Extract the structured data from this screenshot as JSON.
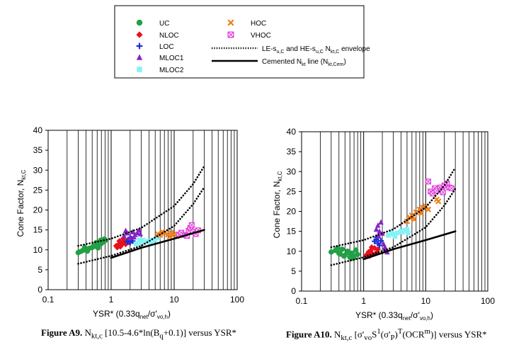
{
  "legend": {
    "items": [
      {
        "key": "UC",
        "label": "UC",
        "color": "#22a045",
        "marker": "circle"
      },
      {
        "key": "NLOC",
        "label": "NLOC",
        "color": "#e8101c",
        "marker": "diamond"
      },
      {
        "key": "LOC",
        "label": "LOC",
        "color": "#1c2fd8",
        "marker": "plus"
      },
      {
        "key": "MLOC1",
        "label": "MLOC1",
        "color": "#8a22c4",
        "marker": "triangle"
      },
      {
        "key": "MLOC2",
        "label": "MLOC2",
        "color": "#86f2f6",
        "marker": "square"
      },
      {
        "key": "HOC",
        "label": "HOC",
        "color": "#f08020",
        "marker": "x"
      },
      {
        "key": "VHOC",
        "label": "VHOC",
        "color": "#e040d8",
        "marker": "boxx"
      }
    ],
    "envelope": {
      "pre": "LE-s",
      "sub1": "u,C",
      "mid": " and HE-s",
      "sub2": "u,C",
      "mid2": " N",
      "sub3": "kt,C",
      "post": " envelope"
    },
    "cemented": {
      "pre": "Cemented N",
      "sub1": "kt",
      "mid": " line (N",
      "sub2": "kt,Cem",
      "post": ")"
    }
  },
  "captions": [
    {
      "fig": "Figure A9.",
      "pre": " N",
      "sub1": "kt,c",
      "post": " [10.5-4.6*ln(B",
      "sub2": "q",
      "post2": "+0.1)] versus YSR*"
    },
    {
      "fig": "Figure A10.",
      "pre": " N",
      "sub1": "kt,c",
      "post": " [σ'",
      "sub2": "vo",
      "post2": "S",
      "sup1": "1",
      "post3": "(σ'",
      "sub3": "P",
      "post4": ")",
      "sup2": "T",
      "post5": "(OCR",
      "sup3": "m",
      "post6": ")] versus YSR*"
    }
  ],
  "chart_data": [
    {
      "type": "scatter",
      "title": "",
      "xlabel": {
        "pre": "YSR* (0.33q",
        "sub1": "net",
        "mid": "/σ'",
        "sub2": "vo,h",
        "post": ")"
      },
      "ylabel": {
        "pre": "Cone Factor, N",
        "sub": "kt,C"
      },
      "xscale": "log",
      "xlim": [
        0.1,
        100
      ],
      "ylim": [
        0,
        40
      ],
      "xticks": [
        0.1,
        1,
        10,
        100
      ],
      "xtick_labels": [
        "0.1",
        "1",
        "10",
        "100"
      ],
      "yticks": [
        0,
        5,
        10,
        15,
        20,
        25,
        30,
        35,
        40
      ],
      "ytick_labels": [
        "0",
        "5",
        "10",
        "15",
        "20",
        "25",
        "30",
        "35",
        "40"
      ],
      "grid": "x-major-minor",
      "lines": [
        {
          "name": "LE-su,C envelope",
          "style": "dotted",
          "x": [
            0.3,
            1,
            3,
            10,
            20,
            30
          ],
          "y": [
            11.0,
            12.8,
            15.5,
            21.0,
            26.5,
            31.0
          ]
        },
        {
          "name": "HE-su,C envelope",
          "style": "dotted",
          "x": [
            0.3,
            1,
            3,
            10,
            20,
            30
          ],
          "y": [
            6.5,
            8.5,
            11.0,
            16.0,
            21.5,
            25.7
          ]
        },
        {
          "name": "Cemented Nkt line",
          "style": "solid",
          "x": [
            1,
            3,
            10,
            30
          ],
          "y": [
            8.0,
            10.5,
            12.8,
            15.0
          ]
        }
      ],
      "series": [
        {
          "name": "UC",
          "points": [
            [
              0.3,
              9.3
            ],
            [
              0.33,
              9.6
            ],
            [
              0.36,
              9.9
            ],
            [
              0.4,
              10.1
            ],
            [
              0.45,
              10.4
            ],
            [
              0.5,
              10.6
            ],
            [
              0.55,
              10.9
            ],
            [
              0.6,
              11.1
            ],
            [
              0.65,
              11.4
            ],
            [
              0.7,
              11.6
            ],
            [
              0.75,
              12.0
            ],
            [
              0.8,
              12.3
            ],
            [
              0.42,
              9.7
            ],
            [
              0.52,
              10.9
            ],
            [
              0.62,
              10.5
            ],
            [
              0.7,
              11.9
            ],
            [
              0.38,
              10.6
            ],
            [
              0.58,
              11.8
            ],
            [
              0.68,
              12.4
            ],
            [
              0.78,
              12.7
            ]
          ]
        },
        {
          "name": "NLOC",
          "points": [
            [
              1.2,
              11.0
            ],
            [
              1.3,
              11.3
            ],
            [
              1.4,
              10.8
            ],
            [
              1.5,
              11.6
            ],
            [
              1.6,
              12.0
            ],
            [
              1.7,
              11.4
            ],
            [
              1.35,
              12.2
            ],
            [
              1.55,
              12.8
            ],
            [
              1.8,
              12.3
            ],
            [
              1.9,
              11.9
            ],
            [
              1.45,
              11.2
            ],
            [
              1.25,
              10.6
            ]
          ]
        },
        {
          "name": "LOC",
          "points": [
            [
              1.8,
              12.0
            ],
            [
              1.9,
              12.5
            ],
            [
              2.0,
              11.8
            ],
            [
              2.1,
              12.8
            ],
            [
              2.2,
              12.2
            ],
            [
              2.0,
              13.1
            ]
          ]
        },
        {
          "name": "MLOC1",
          "points": [
            [
              1.6,
              13.5
            ],
            [
              1.8,
              14.2
            ],
            [
              2.0,
              13.0
            ],
            [
              2.2,
              14.5
            ],
            [
              2.4,
              13.8
            ],
            [
              2.6,
              14.3
            ],
            [
              2.8,
              15.0
            ],
            [
              2.3,
              13.2
            ],
            [
              1.7,
              14.8
            ],
            [
              2.9,
              14.0
            ]
          ]
        },
        {
          "name": "MLOC2",
          "points": [
            [
              2.5,
              11.5
            ],
            [
              3.0,
              11.8
            ],
            [
              3.5,
              12.0
            ],
            [
              4.0,
              12.2
            ],
            [
              4.5,
              12.4
            ],
            [
              5.0,
              12.6
            ],
            [
              3.2,
              12.4
            ],
            [
              4.2,
              11.7
            ],
            [
              5.5,
              13.0
            ],
            [
              2.8,
              12.5
            ]
          ]
        },
        {
          "name": "HOC",
          "points": [
            [
              5.5,
              14.0
            ],
            [
              6.0,
              13.7
            ],
            [
              7.0,
              14.2
            ],
            [
              8.0,
              13.8
            ],
            [
              9.0,
              14.3
            ],
            [
              10.0,
              13.9
            ],
            [
              11.0,
              13.4
            ],
            [
              12.0,
              13.6
            ],
            [
              6.5,
              14.5
            ],
            [
              8.5,
              13.3
            ]
          ]
        },
        {
          "name": "VHOC",
          "points": [
            [
              12.0,
              13.8
            ],
            [
              13.0,
              14.3
            ],
            [
              15.0,
              13.7
            ],
            [
              17.0,
              14.8
            ],
            [
              18.0,
              15.5
            ],
            [
              20.0,
              14.5
            ],
            [
              22.0,
              14.0
            ],
            [
              19.0,
              16.2
            ],
            [
              24.0,
              14.9
            ],
            [
              16.0,
              13.5
            ]
          ]
        }
      ]
    },
    {
      "type": "scatter",
      "title": "",
      "xlabel": {
        "pre": "YSR* (0.33q",
        "sub1": "net",
        "mid": "/σ'",
        "sub2": "vo,h",
        "post": ")"
      },
      "ylabel": {
        "pre": "Cone Factor, N",
        "sub": "kt,C"
      },
      "xscale": "log",
      "xlim": [
        0.1,
        100
      ],
      "ylim": [
        0,
        40
      ],
      "xticks": [
        0.1,
        1,
        10,
        100
      ],
      "xtick_labels": [
        "0.1",
        "1",
        "10",
        "100"
      ],
      "yticks": [
        0,
        5,
        10,
        15,
        20,
        25,
        30,
        35,
        40
      ],
      "ytick_labels": [
        "0",
        "5",
        "10",
        "15",
        "20",
        "25",
        "30",
        "35",
        "40"
      ],
      "grid": "x-major-minor",
      "lines": [
        {
          "name": "LE-su,C envelope",
          "style": "dotted",
          "x": [
            0.3,
            1,
            3,
            10,
            20,
            30
          ],
          "y": [
            11.0,
            12.8,
            15.5,
            21.0,
            26.5,
            31.0
          ]
        },
        {
          "name": "HE-su,C envelope",
          "style": "dotted",
          "x": [
            0.3,
            1,
            3,
            10,
            20,
            30
          ],
          "y": [
            6.5,
            8.5,
            11.0,
            16.0,
            21.5,
            25.7
          ]
        },
        {
          "name": "Cemented Nkt line",
          "style": "solid",
          "x": [
            1,
            3,
            10,
            30
          ],
          "y": [
            8.0,
            10.5,
            12.8,
            15.0
          ]
        }
      ],
      "series": [
        {
          "name": "UC",
          "points": [
            [
              0.3,
              9.8
            ],
            [
              0.35,
              10.2
            ],
            [
              0.4,
              9.5
            ],
            [
              0.45,
              10.5
            ],
            [
              0.5,
              9.0
            ],
            [
              0.55,
              10.0
            ],
            [
              0.6,
              8.5
            ],
            [
              0.65,
              9.5
            ],
            [
              0.7,
              8.8
            ],
            [
              0.75,
              10.3
            ],
            [
              0.8,
              9.2
            ],
            [
              0.38,
              10.8
            ],
            [
              0.48,
              8.8
            ],
            [
              0.58,
              9.7
            ],
            [
              0.68,
              8.2
            ],
            [
              0.42,
              9.3
            ]
          ]
        },
        {
          "name": "NLOC",
          "points": [
            [
              1.1,
              9.0
            ],
            [
              1.2,
              9.8
            ],
            [
              1.3,
              10.2
            ],
            [
              1.4,
              9.3
            ],
            [
              1.5,
              10.8
            ],
            [
              1.6,
              9.6
            ],
            [
              1.7,
              10.5
            ],
            [
              1.35,
              11.0
            ],
            [
              1.25,
              8.8
            ]
          ]
        },
        {
          "name": "LOC",
          "points": [
            [
              1.5,
              12.5
            ],
            [
              1.6,
              13.0
            ],
            [
              1.7,
              12.0
            ],
            [
              1.8,
              11.5
            ],
            [
              1.9,
              12.6
            ],
            [
              1.65,
              13.5
            ]
          ]
        },
        {
          "name": "MLOC1",
          "points": [
            [
              1.6,
              15.5
            ],
            [
              1.7,
              16.5
            ],
            [
              1.8,
              15.0
            ],
            [
              1.9,
              17.3
            ],
            [
              2.0,
              14.5
            ],
            [
              2.1,
              11.8
            ],
            [
              2.2,
              11.0
            ],
            [
              2.3,
              10.5
            ],
            [
              2.4,
              9.8
            ],
            [
              1.75,
              13.8
            ]
          ]
        },
        {
          "name": "MLOC2",
          "points": [
            [
              2.5,
              14.0
            ],
            [
              3.0,
              14.3
            ],
            [
              3.5,
              14.6
            ],
            [
              4.0,
              15.0
            ],
            [
              4.5,
              15.2
            ],
            [
              5.0,
              15.5
            ],
            [
              3.2,
              13.7
            ],
            [
              4.2,
              14.8
            ],
            [
              2.8,
              14.8
            ],
            [
              5.2,
              14.6
            ]
          ]
        },
        {
          "name": "HOC",
          "points": [
            [
              5.0,
              17.5
            ],
            [
              5.5,
              18.5
            ],
            [
              6.0,
              19.0
            ],
            [
              7.0,
              19.8
            ],
            [
              8.0,
              20.5
            ],
            [
              9.0,
              21.0
            ],
            [
              10.0,
              21.3
            ],
            [
              6.5,
              18.0
            ],
            [
              8.5,
              19.5
            ],
            [
              11.0,
              20.5
            ],
            [
              15.0,
              23.0
            ],
            [
              16.0,
              22.5
            ]
          ]
        },
        {
          "name": "VHOC",
          "points": [
            [
              12.0,
              25.0
            ],
            [
              13.0,
              24.5
            ],
            [
              14.0,
              25.8
            ],
            [
              15.0,
              25.2
            ],
            [
              17.0,
              26.0
            ],
            [
              18.0,
              25.5
            ],
            [
              20.0,
              26.5
            ],
            [
              22.0,
              27.0
            ],
            [
              24.0,
              26.0
            ],
            [
              26.0,
              25.8
            ],
            [
              11.0,
              27.5
            ],
            [
              19.0,
              24.8
            ]
          ]
        }
      ]
    }
  ]
}
